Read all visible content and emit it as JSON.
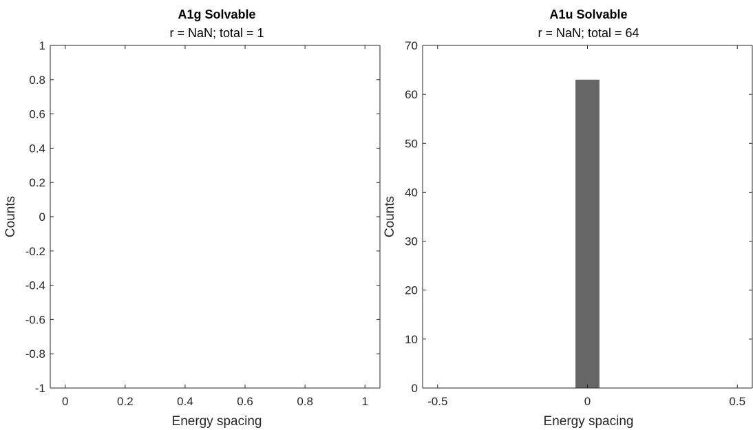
{
  "chart_data": [
    {
      "type": "bar",
      "title": "A1g Solvable",
      "subtitle": "r = NaN; total = 1",
      "xlabel": "Energy spacing",
      "ylabel": "Counts",
      "xlim": [
        -0.05,
        1.05
      ],
      "ylim": [
        -1,
        1
      ],
      "xticks": [
        0,
        0.2,
        0.4,
        0.6,
        0.8,
        1
      ],
      "xtick_labels": [
        "0",
        "0.2",
        "0.4",
        "0.6",
        "0.8",
        "1"
      ],
      "yticks": [
        -1,
        -0.8,
        -0.6,
        -0.4,
        -0.2,
        0,
        0.2,
        0.4,
        0.6,
        0.8,
        1
      ],
      "ytick_labels": [
        "-1",
        "-0.8",
        "-0.6",
        "-0.4",
        "-0.2",
        "0",
        "0.2",
        "0.4",
        "0.6",
        "0.8",
        "1"
      ],
      "bars": [],
      "bar_color": "#666666",
      "grid": false
    },
    {
      "type": "bar",
      "title": "A1u Solvable",
      "subtitle": "r = NaN; total = 64",
      "xlabel": "Energy spacing",
      "ylabel": "Counts",
      "xlim": [
        -0.55,
        0.55
      ],
      "ylim": [
        0,
        70
      ],
      "xticks": [
        -0.5,
        0,
        0.5
      ],
      "xtick_labels": [
        "-0.5",
        "0",
        "0.5"
      ],
      "yticks": [
        0,
        10,
        20,
        30,
        40,
        50,
        60,
        70
      ],
      "ytick_labels": [
        "0",
        "10",
        "20",
        "30",
        "40",
        "50",
        "60",
        "70"
      ],
      "bars": [
        {
          "x0": -0.04,
          "x1": 0.04,
          "value": 63
        }
      ],
      "bar_color": "#666666",
      "grid": false
    }
  ]
}
